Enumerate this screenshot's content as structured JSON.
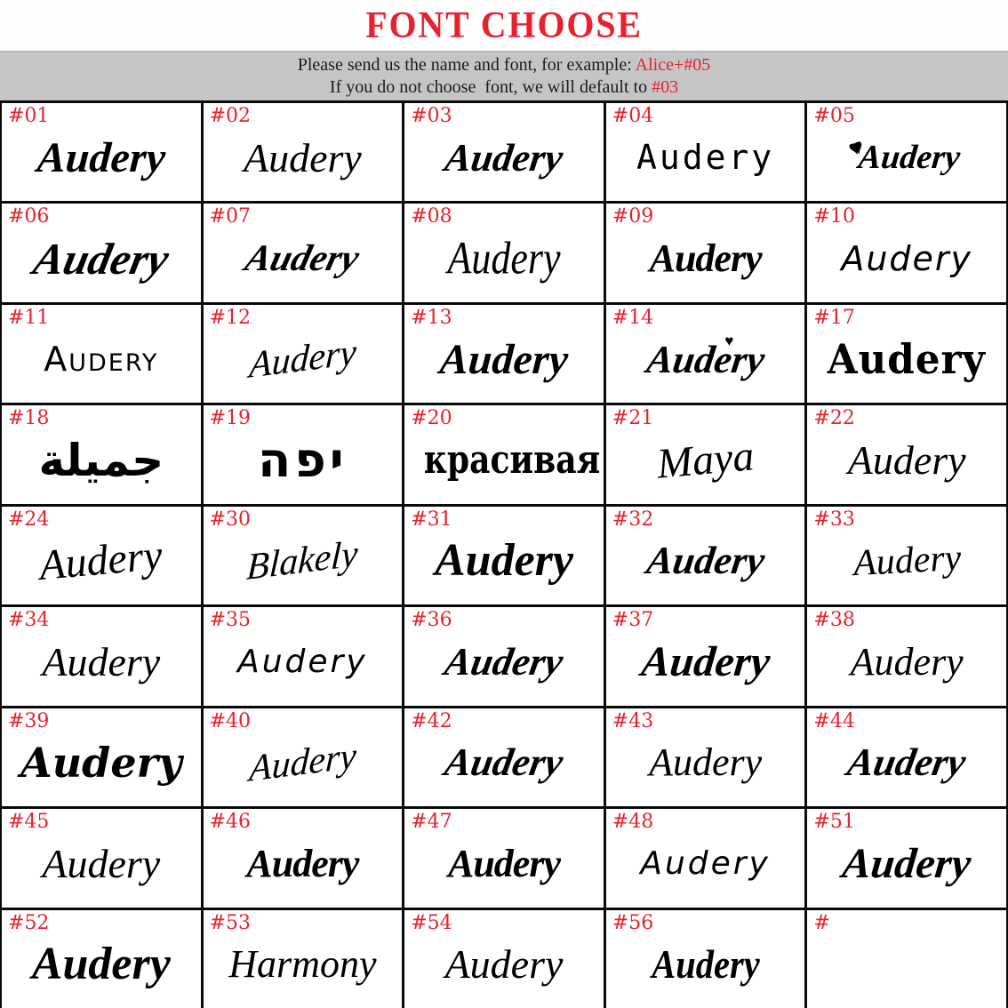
{
  "title": "FONT CHOOSE",
  "banner": {
    "line1_prefix": "Please send us the name and font, for example: ",
    "line1_highlight": "Alice+#05",
    "line2_prefix": "If you do not choose  font, we will default to ",
    "line2_highlight": "#03"
  },
  "colors": {
    "accent_red": "#e8212c",
    "banner_bg": "#c5c5c5",
    "grid_line": "#0a0a0a",
    "ink": "#000000"
  },
  "default_font": "#03",
  "cells": [
    {
      "number": "#01",
      "text": "Audery",
      "style": "chunky"
    },
    {
      "number": "#02",
      "text": "Audery",
      "style": "italic"
    },
    {
      "number": "#03",
      "text": "Audery",
      "style": "flourish-bold"
    },
    {
      "number": "#04",
      "text": "Audery",
      "style": "mono"
    },
    {
      "number": "#05",
      "text": "Audery",
      "style": "script-small",
      "ornament": "hearts-left"
    },
    {
      "number": "#06",
      "text": "Audery",
      "style": "swash-heavy"
    },
    {
      "number": "#07",
      "text": "Audery",
      "style": "swash"
    },
    {
      "number": "#08",
      "text": "Audery",
      "style": "tall-script"
    },
    {
      "number": "#09",
      "text": "Audery",
      "style": "ornate-bold"
    },
    {
      "number": "#10",
      "text": "Audery",
      "style": "hand"
    },
    {
      "number": "#11",
      "text": "Audery",
      "style": "playful-caps"
    },
    {
      "number": "#12",
      "text": "Audery",
      "style": "signature"
    },
    {
      "number": "#13",
      "text": "Audery",
      "style": "chunky"
    },
    {
      "number": "#14",
      "text": "Audery",
      "style": "flourish-bold",
      "ornament": "heart-top"
    },
    {
      "number": "#17",
      "text": "Audery",
      "style": "blackletter"
    },
    {
      "number": "#18",
      "text": "جميلة",
      "style": "arabic"
    },
    {
      "number": "#19",
      "text": "יפה",
      "style": "hebrew"
    },
    {
      "number": "#20",
      "text": "красивая",
      "style": "stamp"
    },
    {
      "number": "#21",
      "text": "Maya",
      "style": "signature-thin"
    },
    {
      "number": "#22",
      "text": "Audery",
      "style": "elegant"
    },
    {
      "number": "#24",
      "text": "Audery",
      "style": "signature-thin"
    },
    {
      "number": "#30",
      "text": "Blakely",
      "style": "signature"
    },
    {
      "number": "#31",
      "text": "Audery",
      "style": "heavy"
    },
    {
      "number": "#32",
      "text": "Audery",
      "style": "flourish-bold"
    },
    {
      "number": "#33",
      "text": "Audery",
      "style": "thin-script"
    },
    {
      "number": "#34",
      "text": "Audery",
      "style": "elegant"
    },
    {
      "number": "#35",
      "text": "Audery",
      "style": "monoline"
    },
    {
      "number": "#36",
      "text": "Audery",
      "style": "brush"
    },
    {
      "number": "#37",
      "text": "Audery",
      "style": "heavy-brush"
    },
    {
      "number": "#38",
      "text": "Audery",
      "style": "script-med"
    },
    {
      "number": "#39",
      "text": "Audery",
      "style": "retro-bold"
    },
    {
      "number": "#40",
      "text": "Audery",
      "style": "signature"
    },
    {
      "number": "#42",
      "text": "Audery",
      "style": "brush"
    },
    {
      "number": "#43",
      "text": "Audery",
      "style": "script-med"
    },
    {
      "number": "#44",
      "text": "Audery",
      "style": "brush"
    },
    {
      "number": "#45",
      "text": "Audery",
      "style": "elegant"
    },
    {
      "number": "#46",
      "text": "Audery",
      "style": "ornate-bold"
    },
    {
      "number": "#47",
      "text": "Audery",
      "style": "ornate-bold"
    },
    {
      "number": "#48",
      "text": "Audery",
      "style": "monoline"
    },
    {
      "number": "#51",
      "text": "Audery",
      "style": "heavy-swash"
    },
    {
      "number": "#52",
      "text": "Audery",
      "style": "heavy"
    },
    {
      "number": "#53",
      "text": "Harmony",
      "style": "script-med"
    },
    {
      "number": "#54",
      "text": "Audery",
      "style": "elegant"
    },
    {
      "number": "#56",
      "text": "Audery",
      "style": "heavy-cond"
    },
    {
      "number": "#",
      "text": "",
      "style": "none"
    }
  ]
}
